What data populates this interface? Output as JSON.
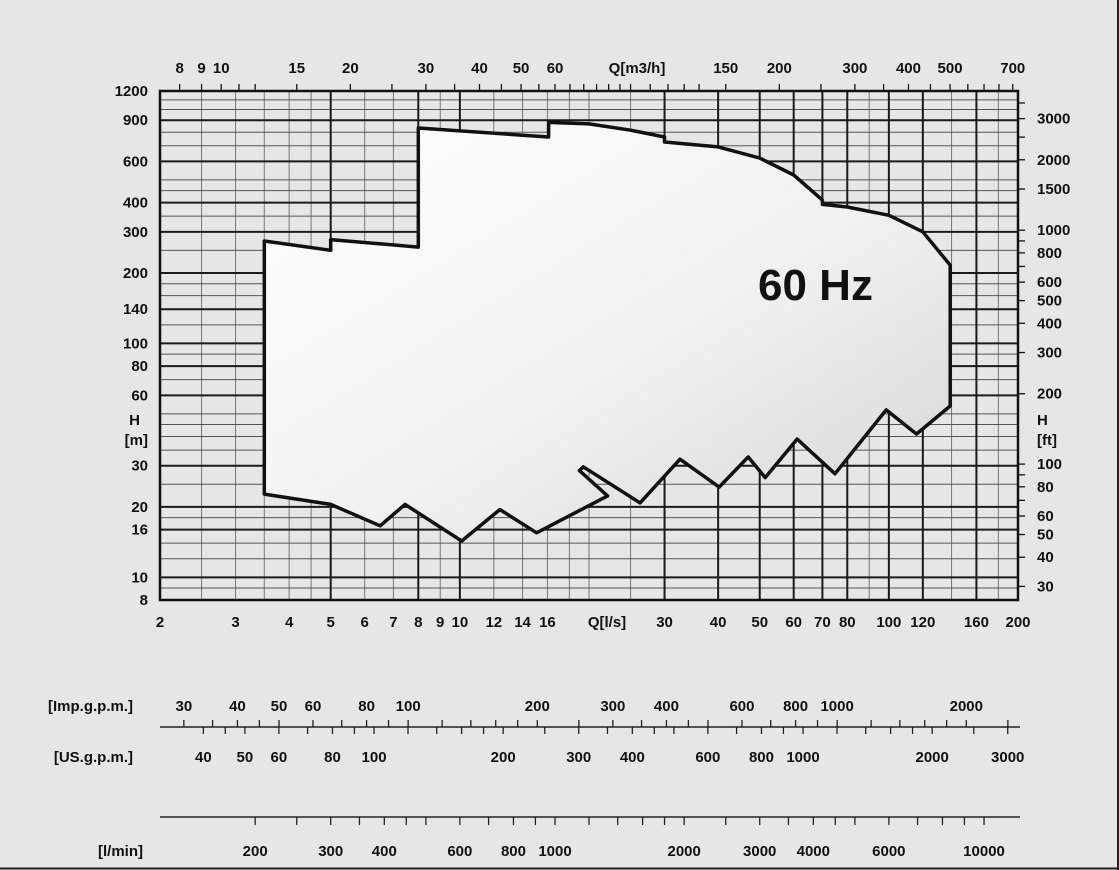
{
  "chart_data": {
    "type": "area",
    "title": "60 Hz",
    "x_scale": "log",
    "y_scale": "log",
    "grid": true,
    "xlabel_bottom": "Q[l/s]",
    "xlabel_top": "Q[m3/h]",
    "ylabel_left": [
      "H",
      "[m]"
    ],
    "ylabel_right": [
      "H",
      "[ft]"
    ],
    "xlim": [
      2,
      200
    ],
    "ylim": [
      8,
      1200
    ],
    "x_ticks_bottom": [
      2,
      3,
      4,
      5,
      6,
      7,
      8,
      9,
      10,
      12,
      14,
      16,
      30,
      40,
      50,
      60,
      70,
      80,
      100,
      120,
      160,
      200
    ],
    "x_ticks_top": [
      8,
      9,
      10,
      15,
      20,
      30,
      40,
      50,
      60,
      150,
      200,
      300,
      400,
      500,
      700
    ],
    "y_ticks_left": [
      1200,
      900,
      600,
      400,
      300,
      200,
      140,
      100,
      80,
      60,
      30,
      20,
      16,
      10,
      8
    ],
    "y_ticks_right": [
      3000,
      2000,
      1500,
      1000,
      800,
      600,
      500,
      400,
      300,
      200,
      100,
      80,
      60,
      50,
      40,
      30
    ],
    "envelope_units": [
      "l/s",
      "m"
    ],
    "envelope": [
      [
        3.5,
        274
      ],
      [
        5,
        250
      ],
      [
        5,
        278
      ],
      [
        8,
        258
      ],
      [
        8,
        834
      ],
      [
        16.1,
        763
      ],
      [
        16.1,
        881
      ],
      [
        20,
        868
      ],
      [
        25,
        816
      ],
      [
        30,
        763
      ],
      [
        30,
        726
      ],
      [
        40,
        692
      ],
      [
        50,
        620
      ],
      [
        60,
        525
      ],
      [
        70,
        410
      ],
      [
        70,
        393
      ],
      [
        80,
        383
      ],
      [
        100,
        353
      ],
      [
        120,
        300
      ],
      [
        139,
        216
      ],
      [
        139,
        54
      ],
      [
        116,
        41
      ],
      [
        98.6,
        52
      ],
      [
        74.9,
        27.7
      ],
      [
        61.1,
        39
      ],
      [
        51.5,
        26.7
      ],
      [
        47,
        32.7
      ],
      [
        40.2,
        24.3
      ],
      [
        32.6,
        32
      ],
      [
        26.3,
        20.8
      ],
      [
        19.4,
        29.7
      ],
      [
        19.0,
        28.6
      ],
      [
        22.1,
        22.3
      ],
      [
        15.1,
        15.5
      ],
      [
        12.4,
        19.5
      ],
      [
        10.1,
        14.3
      ],
      [
        7.45,
        20.5
      ],
      [
        6.52,
        16.6
      ],
      [
        5,
        20.5
      ],
      [
        3.5,
        22.7
      ]
    ],
    "flow_scales": [
      {
        "label": "[Imp.g.p.m.]",
        "factor": 13.198,
        "labels": [
          30,
          40,
          50,
          60,
          80,
          100,
          200,
          300,
          400,
          600,
          800,
          1000,
          2000
        ]
      },
      {
        "label": "[US.g.p.m.]",
        "factor": 15.85,
        "labels": [
          40,
          50,
          60,
          80,
          100,
          200,
          300,
          400,
          600,
          800,
          1000,
          2000,
          3000
        ]
      },
      {
        "label": "[l/min]",
        "factor": 60,
        "labels": [
          200,
          300,
          400,
          600,
          800,
          1000,
          2000,
          3000,
          4000,
          6000,
          10000
        ]
      }
    ],
    "colors": {
      "background": "#e6e6e6",
      "grid": "#222222",
      "envelope_fill": "#ffffff",
      "envelope_stroke": "#111111"
    }
  }
}
